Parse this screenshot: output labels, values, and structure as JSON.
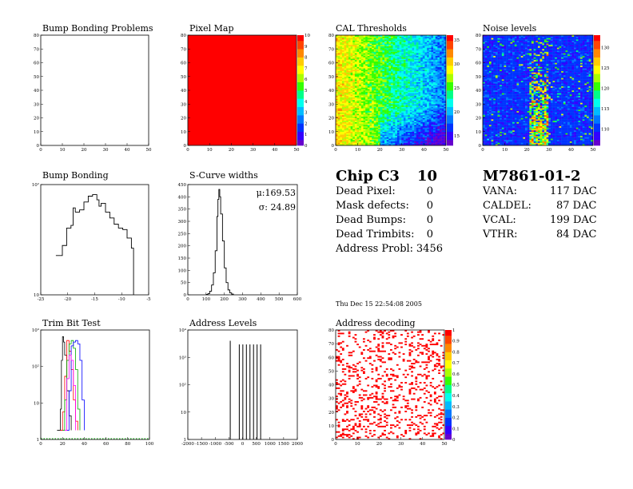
{
  "chip_panel": {
    "title": "Chip C3",
    "number": "10",
    "rows": [
      {
        "label": "Dead Pixel:",
        "value": "0"
      },
      {
        "label": "Mask defects:",
        "value": "0"
      },
      {
        "label": "Dead Bumps:",
        "value": "0"
      },
      {
        "label": "Dead Trimbits:",
        "value": "0"
      },
      {
        "label": "Address Probl:",
        "value": "3456"
      }
    ],
    "timestamp": "Thu Dec 15 22:54:08 2005"
  },
  "module_panel": {
    "title": "M7861-01-2",
    "rows": [
      {
        "label": "VANA:",
        "value": "117 DAC"
      },
      {
        "label": "CALDEL:",
        "value": "87 DAC"
      },
      {
        "label": "VCAL:",
        "value": "199 DAC"
      },
      {
        "label": "VTHR:",
        "value": "84 DAC"
      }
    ]
  },
  "chart_data": [
    {
      "type": "scatter",
      "title": "Bump Bonding Problems",
      "xlim": [
        0,
        52
      ],
      "ylim": [
        0,
        80
      ],
      "xticks": [
        "0",
        "10",
        "20",
        "30",
        "40",
        "50"
      ],
      "yticks": [
        "0",
        "10",
        "20",
        "30",
        "40",
        "50",
        "60",
        "70",
        "80"
      ],
      "points": []
    },
    {
      "type": "heatmap",
      "title": "Pixel Map",
      "xlim": [
        0,
        52
      ],
      "ylim": [
        0,
        80
      ],
      "xticks": [
        "0",
        "10",
        "20",
        "30",
        "40",
        "50"
      ],
      "yticks": [
        "0",
        "10",
        "20",
        "30",
        "40",
        "50",
        "60",
        "70",
        "80"
      ],
      "zlim": [
        0,
        10
      ],
      "zticks": [
        "0",
        "1",
        "2",
        "3",
        "4",
        "5",
        "6",
        "7",
        "8",
        "9",
        "10"
      ],
      "fill_value": 10,
      "grid": [
        52,
        80
      ]
    },
    {
      "type": "heatmap",
      "title": "CAL Thresholds",
      "xlim": [
        0,
        52
      ],
      "ylim": [
        0,
        80
      ],
      "xticks": [
        "0",
        "10",
        "20",
        "30",
        "40",
        "50"
      ],
      "yticks": [
        "0",
        "10",
        "20",
        "30",
        "40",
        "50",
        "60",
        "70",
        "80"
      ],
      "zlim": [
        13,
        36
      ],
      "zticks": [
        "15",
        "20",
        "25",
        "30",
        "35"
      ],
      "grid": [
        52,
        80
      ]
    },
    {
      "type": "heatmap",
      "title": "Noise levels",
      "xlim": [
        0,
        52
      ],
      "ylim": [
        0,
        80
      ],
      "xticks": [
        "0",
        "10",
        "20",
        "30",
        "40",
        "50"
      ],
      "yticks": [
        "0",
        "10",
        "20",
        "30",
        "40",
        "50",
        "60",
        "70",
        "80"
      ],
      "zlim": [
        106,
        133
      ],
      "zticks": [
        "110",
        "115",
        "120",
        "125",
        "130"
      ],
      "grid": [
        52,
        80
      ]
    },
    {
      "type": "line",
      "title": "Bump Bonding",
      "log_y": true,
      "xlim": [
        -26,
        -1
      ],
      "ylim": [
        0.1,
        200
      ],
      "xticks": [
        "-25",
        "-20",
        "-15",
        "-10",
        "-5"
      ],
      "yticks": [
        "10",
        "10²"
      ],
      "x": [
        -22.5,
        -21,
        -20,
        -19,
        -18.5,
        -18,
        -17,
        -16,
        -15,
        -14,
        -13,
        -12.5,
        -12,
        -11,
        -10,
        -9,
        -8,
        -7,
        -6,
        -5,
        -4.5
      ],
      "values": [
        1.5,
        3,
        10,
        12,
        40,
        30,
        35,
        60,
        90,
        100,
        70,
        45,
        55,
        30,
        20,
        13,
        10,
        9,
        5,
        2.5,
        0.1
      ]
    },
    {
      "type": "line",
      "title": "S-Curve widths",
      "xlim": [
        0,
        600
      ],
      "ylim": [
        0,
        450
      ],
      "xticks": [
        "0",
        "100",
        "200",
        "300",
        "400",
        "500",
        "600"
      ],
      "yticks": [
        "0",
        "50",
        "100",
        "150",
        "200",
        "250",
        "300",
        "350",
        "400",
        "450"
      ],
      "annotations": [
        "μ:169.53",
        "σ: 24.89"
      ],
      "x": [
        100,
        110,
        120,
        130,
        140,
        150,
        160,
        165,
        170,
        175,
        180,
        190,
        200,
        210,
        220,
        230,
        240,
        250
      ],
      "values": [
        2,
        5,
        15,
        40,
        90,
        180,
        320,
        390,
        430,
        400,
        330,
        220,
        110,
        50,
        20,
        8,
        3,
        1
      ]
    },
    {
      "type": "line",
      "title": "Trim Bit Test",
      "log_y": true,
      "xlim": [
        0,
        100
      ],
      "ylim": [
        0.5,
        2000
      ],
      "xticks": [
        "0",
        "20",
        "40",
        "60",
        "80",
        "100"
      ],
      "yticks": [
        "1",
        "10",
        "10²",
        "10³"
      ],
      "series": [
        {
          "color": "#000000",
          "x": [
            15,
            18,
            19,
            20,
            21,
            22,
            24,
            26,
            28
          ],
          "values": [
            1,
            5,
            200,
            1200,
            800,
            300,
            20,
            3,
            1
          ]
        },
        {
          "color": "#ff0000",
          "x": [
            18,
            20,
            22,
            24,
            26,
            28,
            30,
            32,
            34
          ],
          "values": [
            1,
            4,
            60,
            900,
            400,
            100,
            10,
            2,
            1
          ]
        },
        {
          "color": "#00aa00",
          "x": [
            20,
            22,
            24,
            26,
            28,
            30,
            32,
            34,
            36
          ],
          "values": [
            1,
            10,
            200,
            700,
            900,
            500,
            100,
            5,
            1
          ]
        },
        {
          "color": "#0000ff",
          "x": [
            24,
            26,
            28,
            30,
            32,
            34,
            36,
            38,
            40
          ],
          "values": [
            1,
            20,
            600,
            800,
            900,
            700,
            200,
            10,
            1
          ]
        },
        {
          "color": "#ff00ff",
          "x": [
            22,
            24,
            26,
            28,
            30,
            32
          ],
          "values": [
            1,
            50,
            300,
            200,
            30,
            1
          ]
        }
      ]
    },
    {
      "type": "bar",
      "title": "Address Levels",
      "log_y": true,
      "xlim": [
        -2000,
        2000
      ],
      "ylim": [
        0.5,
        100000
      ],
      "xticks": [
        "-2000",
        "-1500",
        "-1000",
        "-500",
        "0",
        "500",
        "1000",
        "1500",
        "2000"
      ],
      "yticks": [
        "1",
        "10",
        "10²",
        "10³",
        "10⁴"
      ],
      "x": [
        -450,
        -120,
        10,
        140,
        270,
        400,
        530,
        660
      ],
      "values": [
        30000,
        20000,
        20000,
        20000,
        20000,
        20000,
        20000,
        20000
      ]
    },
    {
      "type": "heatmap",
      "title": "Address decoding",
      "xlim": [
        0,
        52
      ],
      "ylim": [
        0,
        80
      ],
      "xticks": [
        "0",
        "10",
        "20",
        "30",
        "40",
        "50"
      ],
      "yticks": [
        "0",
        "10",
        "20",
        "30",
        "40",
        "50",
        "60",
        "70",
        "80"
      ],
      "zlim": [
        0,
        1
      ],
      "zticks": [
        "0",
        "0.1",
        "0.2",
        "0.3",
        "0.4",
        "0.5",
        "0.6",
        "0.7",
        "0.8",
        "0.9",
        "1"
      ],
      "grid": [
        52,
        80
      ]
    }
  ]
}
